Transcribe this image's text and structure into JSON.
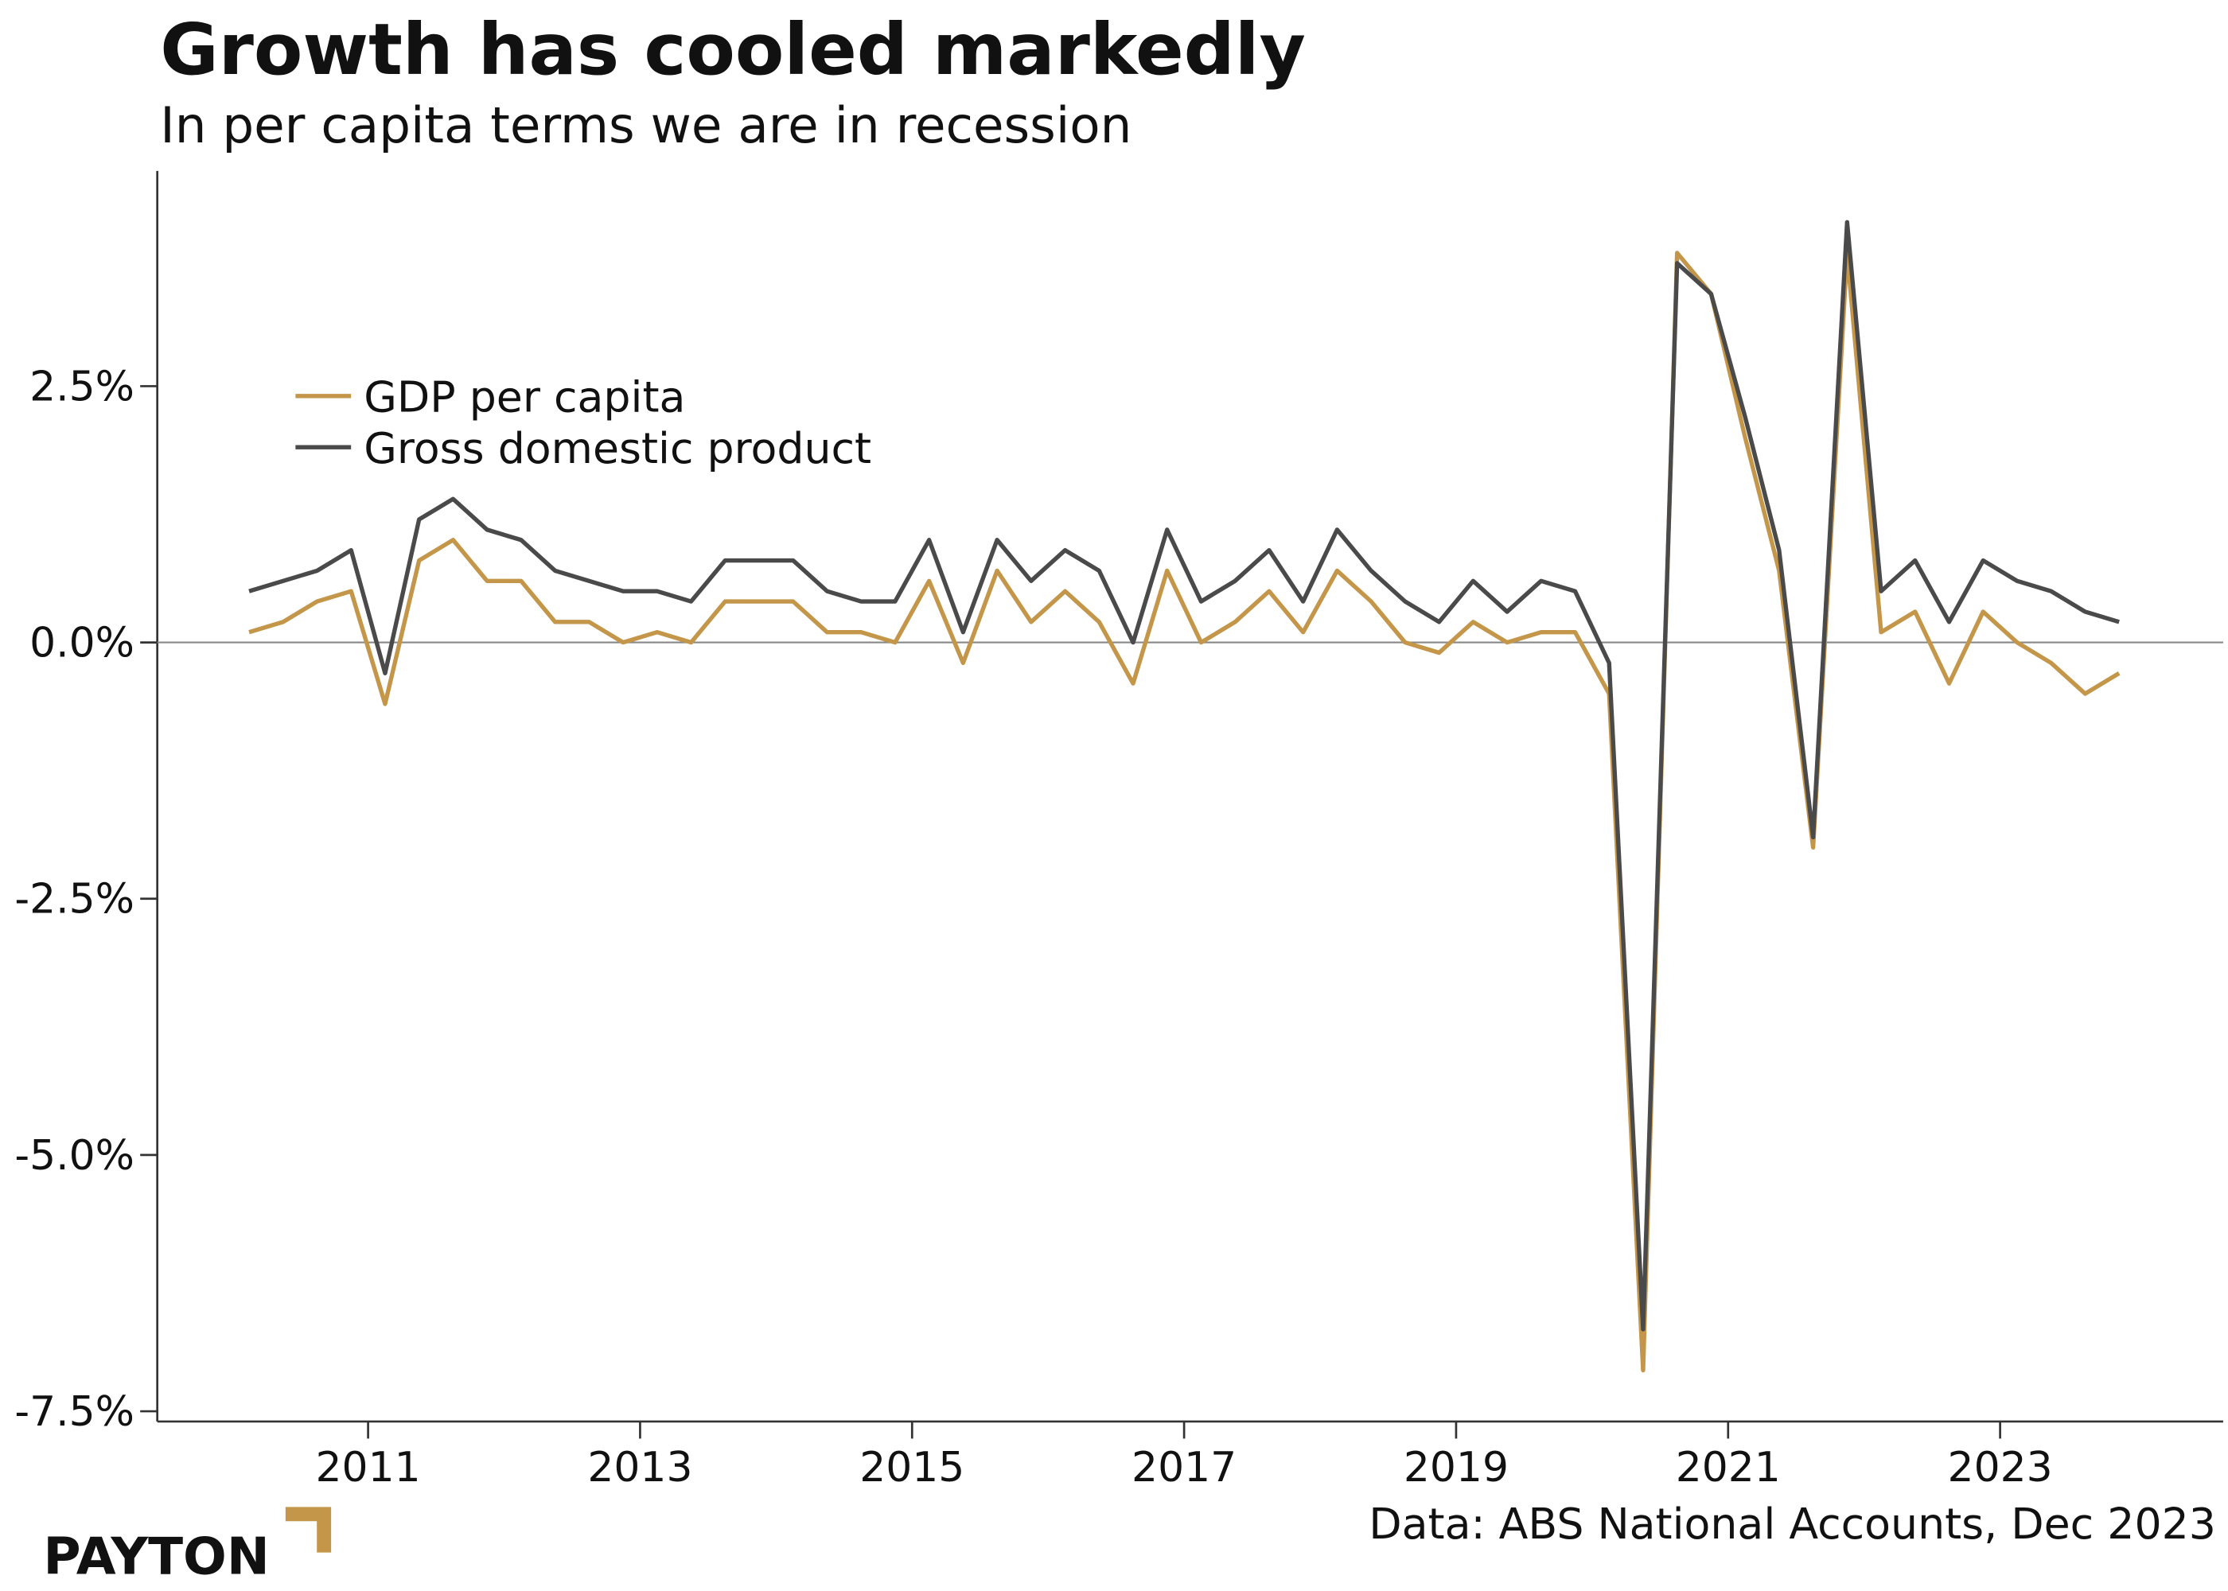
{
  "chart_data": {
    "type": "line",
    "title": "Growth has cooled markedly",
    "subtitle": "In per capita terms we are in recession",
    "source": "Data: ABS National Accounts, Dec 2023",
    "logo": "PAYTON",
    "x": [
      2010.125,
      2010.375,
      2010.625,
      2010.875,
      2011.125,
      2011.375,
      2011.625,
      2011.875,
      2012.125,
      2012.375,
      2012.625,
      2012.875,
      2013.125,
      2013.375,
      2013.625,
      2013.875,
      2014.125,
      2014.375,
      2014.625,
      2014.875,
      2015.125,
      2015.375,
      2015.625,
      2015.875,
      2016.125,
      2016.375,
      2016.625,
      2016.875,
      2017.125,
      2017.375,
      2017.625,
      2017.875,
      2018.125,
      2018.375,
      2018.625,
      2018.875,
      2019.125,
      2019.375,
      2019.625,
      2019.875,
      2020.125,
      2020.375,
      2020.625,
      2020.875,
      2021.125,
      2021.375,
      2021.625,
      2021.875,
      2022.125,
      2022.375,
      2022.625,
      2022.875,
      2023.125,
      2023.375,
      2023.625,
      2023.875
    ],
    "series": [
      {
        "name": "GDP per capita",
        "color": "#c4964a",
        "values": [
          0.1,
          0.2,
          0.4,
          0.5,
          -0.6,
          0.8,
          1.0,
          0.6,
          0.6,
          0.2,
          0.2,
          0.0,
          0.1,
          0.0,
          0.4,
          0.4,
          0.4,
          0.1,
          0.1,
          0.0,
          0.6,
          -0.2,
          0.7,
          0.2,
          0.5,
          0.2,
          -0.4,
          0.7,
          0.0,
          0.2,
          0.5,
          0.1,
          0.7,
          0.4,
          0.0,
          -0.1,
          0.2,
          0.0,
          0.1,
          0.1,
          -0.5,
          -7.1,
          3.8,
          3.4,
          2.0,
          0.7,
          -2.0,
          3.8,
          0.1,
          0.3,
          -0.4,
          0.3,
          0.0,
          -0.2,
          -0.5,
          -0.3
        ]
      },
      {
        "name": "Gross domestic product",
        "color": "#4a4a4a",
        "values": [
          0.5,
          0.6,
          0.7,
          0.9,
          -0.3,
          1.2,
          1.4,
          1.1,
          1.0,
          0.7,
          0.6,
          0.5,
          0.5,
          0.4,
          0.8,
          0.8,
          0.8,
          0.5,
          0.4,
          0.4,
          1.0,
          0.1,
          1.0,
          0.6,
          0.9,
          0.7,
          0.0,
          1.1,
          0.4,
          0.6,
          0.9,
          0.4,
          1.1,
          0.7,
          0.4,
          0.2,
          0.6,
          0.3,
          0.6,
          0.5,
          -0.2,
          -6.7,
          3.7,
          3.4,
          2.2,
          0.9,
          -1.9,
          4.1,
          0.5,
          0.8,
          0.2,
          0.8,
          0.6,
          0.5,
          0.3,
          0.2
        ]
      }
    ],
    "xlim": [
      2009.45,
      2024.64
    ],
    "xticks": [
      2011,
      2013,
      2015,
      2017,
      2019,
      2021,
      2023
    ],
    "ylim": [
      -7.6,
      4.6
    ],
    "yticks": [
      {
        "value": -7.5,
        "label": "-7.5%"
      },
      {
        "value": -5,
        "label": "-5.0%"
      },
      {
        "value": -2.5,
        "label": "-2.5%"
      },
      {
        "value": 0,
        "label": "0.0%"
      },
      {
        "value": 2.5,
        "label": "2.5%"
      }
    ],
    "grid": false,
    "legend": "upper left"
  }
}
